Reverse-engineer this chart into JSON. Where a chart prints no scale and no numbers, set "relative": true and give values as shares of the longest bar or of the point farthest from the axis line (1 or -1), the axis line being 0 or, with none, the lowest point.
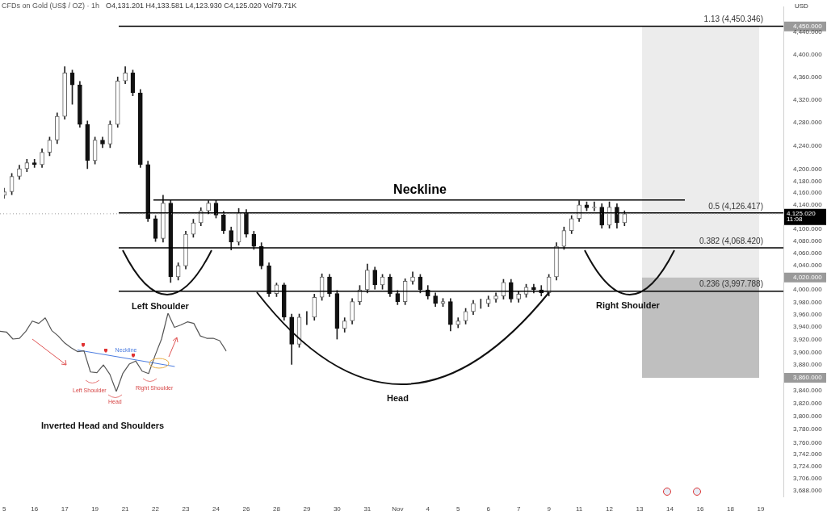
{
  "chart_data": [
    {
      "type": "candlestick",
      "title": "CFDs on Gold (US$ / OZ) · 1h",
      "subtitle": "O4,131.201 H4,133.581 L4,123.930 C4,125.020 Vol79.71K",
      "ylabel": "USD",
      "log": true,
      "categories": [
        "5",
        null,
        null,
        null,
        "16",
        null,
        null,
        null,
        "17",
        null,
        null,
        null,
        "19",
        null,
        null,
        null,
        "21",
        null,
        null,
        null,
        "22",
        null,
        null,
        null,
        "23",
        null,
        null,
        null,
        "24",
        null,
        null,
        null,
        "26",
        null,
        null,
        null,
        "28",
        null,
        null,
        null,
        "29",
        null,
        null,
        null,
        "30",
        null,
        null,
        null,
        "31",
        null,
        null,
        null,
        "Nov",
        null,
        null,
        null,
        "4",
        null,
        null,
        null,
        "5",
        null,
        null,
        null,
        "6",
        null,
        null,
        null,
        "7",
        null,
        null,
        null,
        "9",
        null,
        null,
        null,
        "11",
        null,
        null,
        null,
        "12",
        null,
        null,
        null,
        "13",
        null,
        null,
        null,
        "14",
        null,
        null,
        null,
        "16",
        null,
        null,
        null,
        "18",
        null,
        null,
        null,
        "19",
        null,
        null,
        null
      ],
      "ohlc": [
        [
          4156,
          4168,
          4151,
          4162
        ],
        [
          4162,
          4193,
          4157,
          4188
        ],
        [
          4188,
          4207,
          4183,
          4201
        ],
        [
          4201,
          4217,
          4196,
          4211
        ],
        [
          4211,
          4217,
          4203,
          4208
        ],
        [
          4208,
          4235,
          4203,
          4229
        ],
        [
          4229,
          4255,
          4223,
          4250
        ],
        [
          4250,
          4297,
          4244,
          4291
        ],
        [
          4291,
          4378,
          4286,
          4367
        ],
        [
          4367,
          4372,
          4312,
          4346
        ],
        [
          4346,
          4352,
          4272,
          4277
        ],
        [
          4277,
          4283,
          4201,
          4215
        ],
        [
          4215,
          4255,
          4209,
          4250
        ],
        [
          4250,
          4255,
          4237,
          4243
        ],
        [
          4243,
          4283,
          4237,
          4277
        ],
        [
          4277,
          4360,
          4272,
          4353
        ],
        [
          4353,
          4378,
          4348,
          4367
        ],
        [
          4367,
          4372,
          4327,
          4332
        ],
        [
          4332,
          4338,
          4203,
          4208
        ],
        [
          4208,
          4214,
          4112,
          4117
        ],
        [
          4117,
          4122,
          4079,
          4084
        ],
        [
          4084,
          4156,
          4078,
          4143
        ],
        [
          4143,
          4148,
          4012,
          4021
        ],
        [
          4021,
          4044,
          4016,
          4039
        ],
        [
          4039,
          4096,
          4034,
          4091
        ],
        [
          4091,
          4116,
          4086,
          4110
        ],
        [
          4110,
          4135,
          4105,
          4130
        ],
        [
          4130,
          4147,
          4125,
          4143
        ],
        [
          4143,
          4148,
          4118,
          4123
        ],
        [
          4123,
          4129,
          4092,
          4097
        ],
        [
          4097,
          4103,
          4065,
          4078
        ],
        [
          4078,
          4134,
          4073,
          4127
        ],
        [
          4127,
          4132,
          4086,
          4091
        ],
        [
          4091,
          4096,
          4066,
          4071
        ],
        [
          4071,
          4077,
          4034,
          4039
        ],
        [
          4039,
          4044,
          3989,
          3994
        ],
        [
          3994,
          4011,
          3989,
          4008
        ],
        [
          4008,
          4011,
          3951,
          3956
        ],
        [
          3956,
          3961,
          3881,
          3913
        ],
        [
          3913,
          3961,
          3908,
          3956
        ],
        [
          3956,
          3965,
          3944,
          3956
        ],
        [
          3956,
          3993,
          3951,
          3988
        ],
        [
          3988,
          4026,
          3983,
          4021
        ],
        [
          4021,
          4025,
          3989,
          3994
        ],
        [
          3994,
          3999,
          3921,
          3938
        ],
        [
          3938,
          3955,
          3932,
          3950
        ],
        [
          3950,
          3986,
          3945,
          3981
        ],
        [
          3981,
          4007,
          3976,
          4000
        ],
        [
          4000,
          4042,
          3995,
          4032
        ],
        [
          4032,
          4037,
          4001,
          4008
        ],
        [
          4008,
          4025,
          4001,
          4021
        ],
        [
          4021,
          4025,
          3989,
          3994
        ],
        [
          3994,
          3999,
          3976,
          3981
        ],
        [
          3981,
          4018,
          3976,
          4014
        ],
        [
          4014,
          4029,
          4009,
          4021
        ],
        [
          4021,
          4025,
          3995,
          4000
        ],
        [
          4000,
          4007,
          3985,
          3990
        ],
        [
          3990,
          3995,
          3973,
          3978
        ],
        [
          3978,
          3986,
          3973,
          3981
        ],
        [
          3981,
          3986,
          3934,
          3944
        ],
        [
          3944,
          3955,
          3939,
          3950
        ],
        [
          3950,
          3970,
          3945,
          3965
        ],
        [
          3965,
          3983,
          3960,
          3978
        ],
        [
          3978,
          3985,
          3970,
          3978
        ],
        [
          3978,
          3990,
          3973,
          3985
        ],
        [
          3985,
          3995,
          3980,
          3990
        ],
        [
          3990,
          4017,
          3985,
          4012
        ],
        [
          4012,
          4017,
          3980,
          3985
        ],
        [
          3985,
          3998,
          3980,
          3993
        ],
        [
          3993,
          4009,
          3988,
          4004
        ],
        [
          4004,
          4009,
          3995,
          4000
        ],
        [
          4000,
          4007,
          3990,
          3995
        ],
        [
          3995,
          4025,
          3990,
          4021
        ],
        [
          4021,
          4077,
          4016,
          4071
        ],
        [
          4071,
          4103,
          4066,
          4097
        ],
        [
          4097,
          4122,
          4092,
          4117
        ],
        [
          4117,
          4147,
          4112,
          4140
        ],
        [
          4140,
          4145,
          4130,
          4135
        ],
        [
          4135,
          4145,
          4130,
          4136
        ],
        [
          4136,
          4142,
          4101,
          4106
        ],
        [
          4106,
          4145,
          4101,
          4136
        ],
        [
          4136,
          4142,
          4101,
          4110
        ],
        [
          4110,
          4130,
          4105,
          4125.02
        ],
        null,
        null,
        null,
        null,
        null,
        null,
        null,
        null,
        null,
        null,
        null,
        null,
        null,
        null,
        null,
        null,
        null,
        null,
        null,
        null,
        null
      ],
      "ylim": [
        3679,
        4485
      ],
      "yticks": [
        {
          "value": 4450,
          "label": "4,450.000"
        },
        {
          "value": 4440,
          "label": "4,440.000"
        },
        {
          "value": 4400,
          "label": "4,400.000"
        },
        {
          "value": 4360,
          "label": "4,360.000"
        },
        {
          "value": 4320,
          "label": "4,320.000"
        },
        {
          "value": 4280,
          "label": "4,280.000"
        },
        {
          "value": 4240,
          "label": "4,240.000"
        },
        {
          "value": 4200,
          "label": "4,200.000"
        },
        {
          "value": 4180,
          "label": "4,180.000"
        },
        {
          "value": 4160,
          "label": "4,160.000"
        },
        {
          "value": 4140,
          "label": "4,140.000"
        },
        {
          "value": 4100,
          "label": "4,100.000"
        },
        {
          "value": 4080,
          "label": "4,080.000"
        },
        {
          "value": 4060,
          "label": "4,060.000"
        },
        {
          "value": 4040,
          "label": "4,040.000"
        },
        {
          "value": 4020,
          "label": "4,020.000"
        },
        {
          "value": 4000,
          "label": "4,000.000"
        },
        {
          "value": 3980,
          "label": "3,980.000"
        },
        {
          "value": 3960,
          "label": "3,960.000"
        },
        {
          "value": 3940,
          "label": "3,940.000"
        },
        {
          "value": 3920,
          "label": "3,920.000"
        },
        {
          "value": 3900,
          "label": "3,900.000"
        },
        {
          "value": 3880,
          "label": "3,880.000"
        },
        {
          "value": 3860,
          "label": "3,860.000"
        },
        {
          "value": 3840,
          "label": "3,840.000"
        },
        {
          "value": 3820,
          "label": "3,820.000"
        },
        {
          "value": 3800,
          "label": "3,800.000"
        },
        {
          "value": 3780,
          "label": "3,780.000"
        },
        {
          "value": 3760,
          "label": "3,760.000"
        },
        {
          "value": 3742,
          "label": "3,742.000"
        },
        {
          "value": 3724,
          "label": "3,724.000"
        },
        {
          "value": 3706,
          "label": "3,706.000"
        },
        {
          "value": 3688,
          "label": "3,688.000"
        }
      ],
      "ref_lines": [
        {
          "axis": "y",
          "value": 4450.346,
          "label": "1.13 (4,450.346)",
          "color": "#000000"
        },
        {
          "axis": "y",
          "value": 4126.417,
          "label": "0.5 (4,126.417)",
          "color": "#000000"
        },
        {
          "axis": "y",
          "value": 4068.42,
          "label": "0.382 (4,068.420)",
          "color": "#000000"
        },
        {
          "axis": "y",
          "value": 3997.788,
          "label": "0.236 (3,997.788)",
          "color": "#000000"
        },
        {
          "axis": "y",
          "value": 4148,
          "label": "Neckline",
          "color": "#000000"
        },
        {
          "axis": "y",
          "value": 4125.02,
          "label": "4,125.020",
          "color": "#9e9e9e",
          "line_style": "dotted"
        }
      ],
      "bands": [
        {
          "axis": "y",
          "from": 4020,
          "to": 4450,
          "color": "#ececec"
        },
        {
          "axis": "y",
          "from": 3860,
          "to": 4020,
          "color": "#bfbfbf"
        }
      ],
      "annotations": [
        "Left Shoulder",
        "Head",
        "Right Shoulder",
        "11:08"
      ]
    },
    {
      "type": "line",
      "relative": true,
      "title": "Inverted Head and Shoulders",
      "categories": [
        null,
        null,
        null,
        null,
        null,
        null,
        null,
        null,
        null,
        null,
        null,
        null,
        null,
        null,
        null,
        null,
        null,
        null,
        null,
        null,
        null,
        null,
        null,
        null,
        null,
        null,
        null,
        null,
        null,
        null,
        null,
        null,
        null,
        null,
        null,
        null
      ],
      "series": [
        {
          "color": "#555555",
          "values": [
            0.77,
            0.76,
            0.67,
            0.68,
            0.77,
            0.9,
            0.87,
            0.94,
            0.78,
            0.71,
            0.62,
            0.56,
            0.51,
            0.52,
            0.25,
            0.24,
            0.34,
            0.22,
            0,
            0.23,
            0.35,
            0.39,
            0.26,
            0.23,
            0.46,
            0.67,
            1,
            0.82,
            0.85,
            0.89,
            0.87,
            0.71,
            0.68,
            0.68,
            0.65,
            0.52
          ]
        },
        {
          "name": "Neckline",
          "color": "#4a7be0",
          "values": [
            null,
            null,
            null,
            null,
            null,
            null,
            null,
            null,
            null,
            null,
            null,
            null,
            0.53,
            null,
            null,
            null,
            null,
            null,
            null,
            null,
            null,
            null,
            null,
            null,
            null,
            null,
            null,
            0.32,
            null,
            null,
            null,
            null,
            null,
            null,
            null,
            null
          ]
        }
      ],
      "annotations": [
        "Left Shoulder",
        "Head",
        "Right Shoulder"
      ]
    }
  ]
}
